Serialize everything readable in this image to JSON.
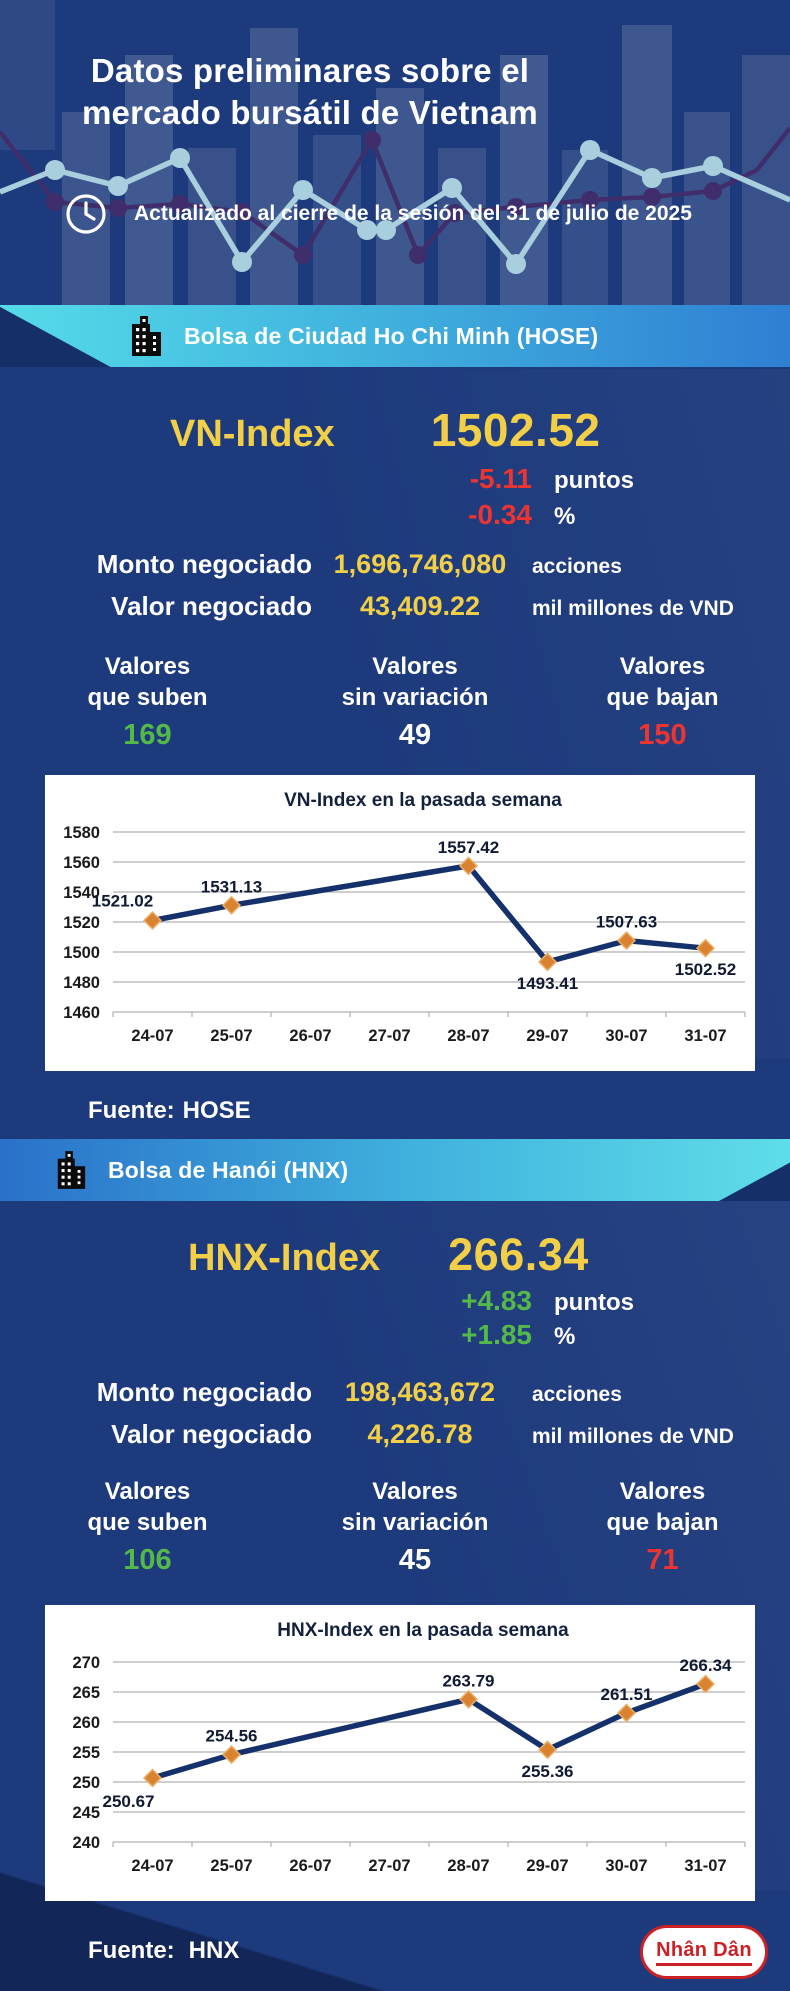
{
  "header": {
    "title_line1": "Datos preliminares sobre el",
    "title_line2": "mercado bursátil de Vietnam",
    "updated_text": "Actualizado al cierre de la sesión del 31 de julio de 2025"
  },
  "hose": {
    "banner_label": "Bolsa de Ciudad Ho Chi Minh (HOSE)",
    "index_name": "VN-Index",
    "index_value": "1502.52",
    "change_points": "-5.11",
    "change_points_unit": "puntos",
    "change_percent": "-0.34",
    "change_percent_unit": "%",
    "volume_label": "Monto negociado",
    "volume_value": "1,696,746,080",
    "volume_unit": "acciones",
    "turnover_label": "Valor negociado",
    "turnover_value": "43,409.22",
    "turnover_unit": "mil millones de VND",
    "breadth": {
      "up_l1": "Valores",
      "up_l2": "que suben",
      "up_value": "169",
      "flat_l1": "Valores",
      "flat_l2": "sin variación",
      "flat_value": "49",
      "down_l1": "Valores",
      "down_l2": "que bajan",
      "down_value": "150"
    },
    "source_label": "Fuente:",
    "source_value": "HOSE"
  },
  "hnx": {
    "banner_label": "Bolsa de Hanói (HNX)",
    "index_name": "HNX-Index",
    "index_value": "266.34",
    "change_points": "+4.83",
    "change_points_unit": "puntos",
    "change_percent": "+1.85",
    "change_percent_unit": "%",
    "volume_label": "Monto negociado",
    "volume_value": "198,463,672",
    "volume_unit": "acciones",
    "turnover_label": "Valor negociado",
    "turnover_value": "4,226.78",
    "turnover_unit": "mil millones de VND",
    "breadth": {
      "up_l1": "Valores",
      "up_l2": "que suben",
      "up_value": "106",
      "flat_l1": "Valores",
      "flat_l2": "sin variación",
      "flat_value": "45",
      "down_l1": "Valores",
      "down_l2": "que bajan",
      "down_value": "71"
    },
    "source_label": "Fuente:",
    "source_value": "HNX"
  },
  "footer": {
    "logo_text": "Nhân Dân"
  },
  "colors": {
    "background_navy": "#1d3a7c",
    "accent_yellow": "#f2cf47",
    "negative_red": "#ee3431",
    "positive_green": "#55b949",
    "banner_cyan": "#55dbe9",
    "banner_blue": "#2f7fd3",
    "chart_line_navy": "#15316b",
    "chart_marker_orange": "#d9822f"
  },
  "chart_data": [
    {
      "type": "line",
      "title": "VN-Index en la pasada semana",
      "categories": [
        "24-07",
        "25-07",
        "26-07",
        "27-07",
        "28-07",
        "29-07",
        "30-07",
        "31-07"
      ],
      "series": [
        {
          "name": "VN-Index",
          "points": [
            {
              "x": "24-07",
              "y": 1521.02,
              "label_pos": "above-left"
            },
            {
              "x": "25-07",
              "y": 1531.13,
              "label_pos": "above"
            },
            {
              "x": "28-07",
              "y": 1557.42,
              "label_pos": "above"
            },
            {
              "x": "29-07",
              "y": 1493.41,
              "label_pos": "below"
            },
            {
              "x": "30-07",
              "y": 1507.63,
              "label_pos": "above"
            },
            {
              "x": "31-07",
              "y": 1502.52,
              "label_pos": "below"
            }
          ]
        }
      ],
      "ylim": [
        1460,
        1580
      ],
      "ytick_step": 20,
      "grid": true,
      "legend": false,
      "note": "no data on 26-07 and 27-07 (weekend)"
    },
    {
      "type": "line",
      "title": "HNX-Index en la pasada semana",
      "categories": [
        "24-07",
        "25-07",
        "26-07",
        "27-07",
        "28-07",
        "29-07",
        "30-07",
        "31-07"
      ],
      "series": [
        {
          "name": "HNX-Index",
          "points": [
            {
              "x": "24-07",
              "y": 250.67,
              "label_pos": "below-left"
            },
            {
              "x": "25-07",
              "y": 254.56,
              "label_pos": "above"
            },
            {
              "x": "28-07",
              "y": 263.79,
              "label_pos": "above"
            },
            {
              "x": "29-07",
              "y": 255.36,
              "label_pos": "below"
            },
            {
              "x": "30-07",
              "y": 261.51,
              "label_pos": "above"
            },
            {
              "x": "31-07",
              "y": 266.34,
              "label_pos": "above"
            }
          ]
        }
      ],
      "ylim": [
        240,
        270
      ],
      "ytick_step": 5,
      "grid": true,
      "legend": false,
      "note": "no data on 26-07 and 27-07 (weekend)"
    }
  ]
}
